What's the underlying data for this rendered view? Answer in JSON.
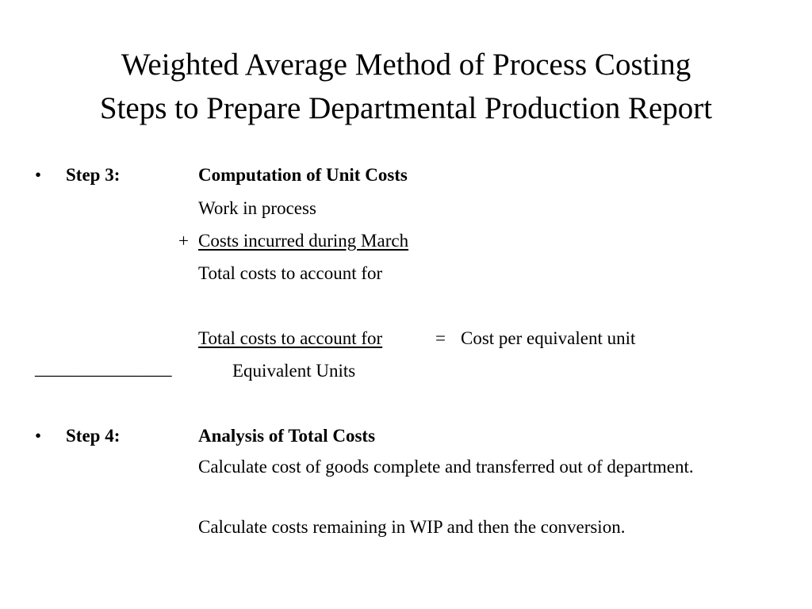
{
  "title": {
    "line1": "Weighted Average Method of Process Costing",
    "line2": "Steps to Prepare Departmental Production Report"
  },
  "step3": {
    "bullet": "•",
    "label": "Step 3:",
    "heading": "Computation of Unit Costs",
    "line_wip": "Work in process",
    "plus": "+",
    "line_costs_incurred": "Costs incurred during March",
    "line_total": "Total costs to account for",
    "formula_numerator": "Total costs to account for",
    "formula_equals": "=",
    "formula_result": "Cost per equivalent unit",
    "fraction_bar": "_______________",
    "formula_denominator": "Equivalent Units"
  },
  "step4": {
    "bullet": "•",
    "label": "Step 4:",
    "heading": "Analysis of Total Costs",
    "line1": "Calculate cost of goods complete and transferred out of department.",
    "line2": "Calculate costs remaining in WIP and then the conversion."
  }
}
